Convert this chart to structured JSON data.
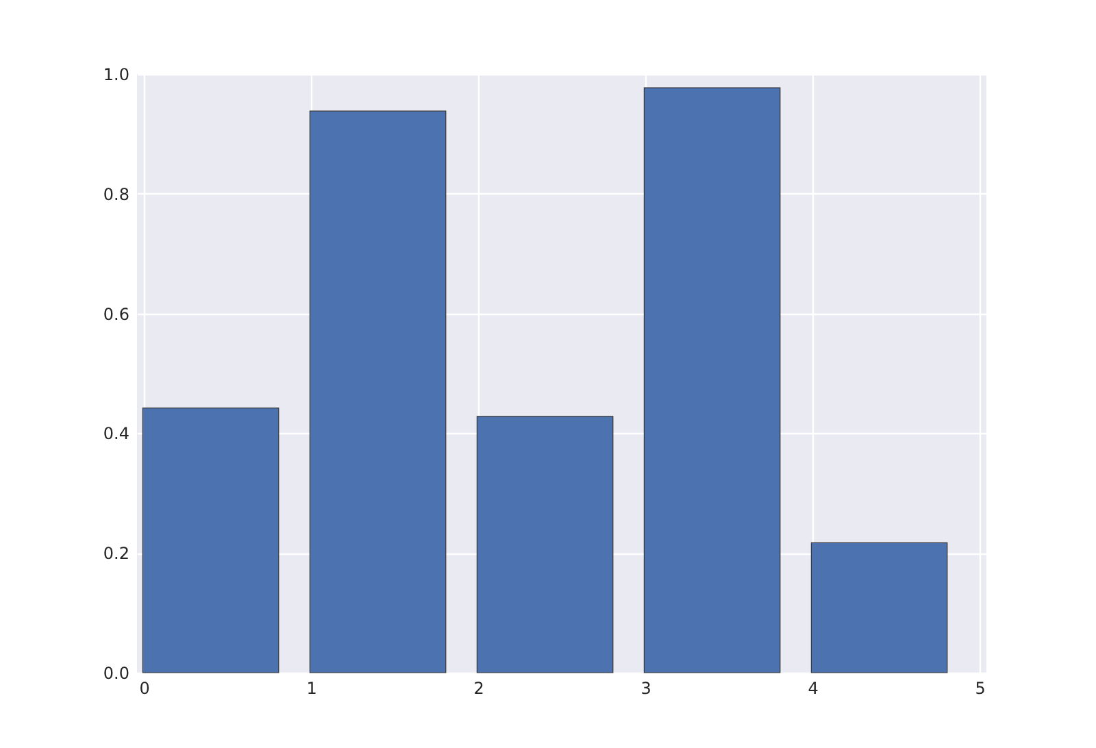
{
  "chart_data": {
    "type": "bar",
    "x": [
      0.4,
      1.4,
      2.4,
      3.4,
      4.4
    ],
    "values": [
      0.442,
      0.938,
      0.428,
      0.977,
      0.217
    ],
    "color": "#4c72b0",
    "xlim": [
      0,
      5
    ],
    "xticks": [
      0,
      1,
      2,
      3,
      4,
      5
    ],
    "ylim": [
      0,
      1
    ],
    "yticks": [
      {
        "value": 0,
        "label": "0.0"
      },
      {
        "value": 0.2,
        "label": "0.2"
      },
      {
        "value": 0.4,
        "label": "0.4"
      },
      {
        "value": 0.6,
        "label": "0.6"
      },
      {
        "value": 0.8,
        "label": "0.8"
      },
      {
        "value": 1,
        "label": "1.0"
      }
    ],
    "grid": true
  }
}
